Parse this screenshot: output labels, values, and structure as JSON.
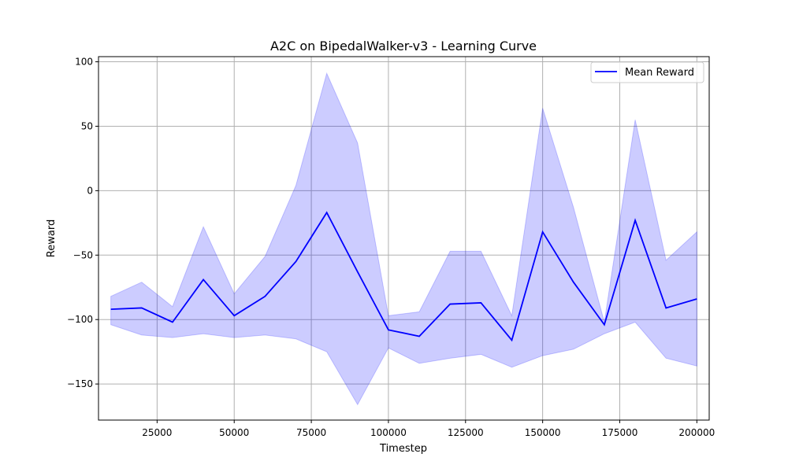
{
  "chart_data": {
    "type": "line",
    "title": "A2C on BipedalWalker-v3 - Learning Curve",
    "xlabel": "Timestep",
    "ylabel": "Reward",
    "xlim": [
      6000,
      204000
    ],
    "ylim": [
      -178,
      104
    ],
    "xticks": [
      25000,
      50000,
      75000,
      100000,
      125000,
      150000,
      175000,
      200000
    ],
    "yticks": [
      100,
      50,
      0,
      -50,
      -100,
      -150
    ],
    "grid": true,
    "legend_position": "top-right",
    "colors": {
      "line": "#0000ff",
      "band": "#0000ff",
      "band_opacity": 0.2
    },
    "series": [
      {
        "name": "Mean Reward",
        "x": [
          10000,
          20000,
          30000,
          40000,
          50000,
          60000,
          70000,
          80000,
          90000,
          100000,
          110000,
          120000,
          130000,
          140000,
          150000,
          160000,
          170000,
          180000,
          190000,
          200000
        ],
        "mean": [
          -92,
          -91,
          -102,
          -69,
          -97,
          -82,
          -55,
          -17,
          -63,
          -108,
          -113,
          -88,
          -87,
          -116,
          -32,
          -71,
          -104,
          -23,
          -91,
          -84
        ],
        "upper": [
          -82,
          -71,
          -90,
          -28,
          -80,
          -51,
          4,
          91,
          37,
          -97,
          -94,
          -47,
          -47,
          -97,
          64,
          -13,
          -102,
          55,
          -54,
          -32
        ],
        "lower": [
          -104,
          -112,
          -114,
          -111,
          -114,
          -112,
          -115,
          -125,
          -166,
          -122,
          -134,
          -130,
          -127,
          -137,
          -128,
          -123,
          -111,
          -102,
          -130,
          -136
        ]
      }
    ]
  }
}
